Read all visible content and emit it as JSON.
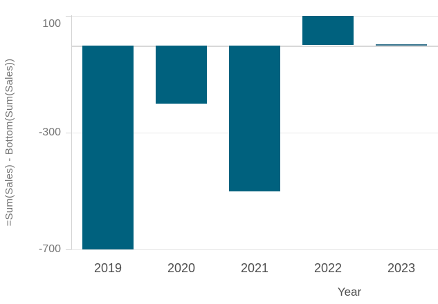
{
  "chart_data": {
    "type": "bar",
    "title": "",
    "categories": [
      "2019",
      "2020",
      "2021",
      "2022",
      "2023"
    ],
    "values": [
      -700,
      -200,
      -500,
      100,
      5
    ],
    "xlabel": "Year",
    "ylabel": "=Sum(Sales) - Bottom(Sum(Sales))",
    "yticks": [
      {
        "value": 100,
        "label": "100"
      },
      {
        "value": -300,
        "label": "-300"
      },
      {
        "value": -700,
        "label": "-700"
      }
    ],
    "ylim": [
      -700,
      100
    ],
    "grid": true,
    "zero_line": true,
    "legend": "none"
  },
  "colors": {
    "bar": "#00617e",
    "bar_thin": "#39758f",
    "gridline": "#e6e6e6",
    "zero_line": "#d8d8d8",
    "axis": "#d4d4d4",
    "tick_text": "#767676",
    "label_text": "#4f4f4f",
    "background": "#ffffff"
  }
}
